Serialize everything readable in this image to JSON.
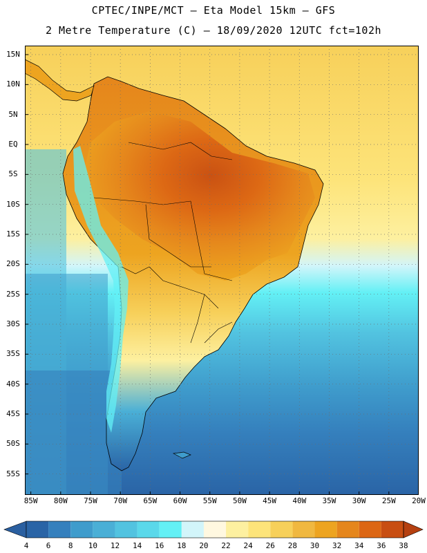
{
  "header": {
    "line1": "CPTEC/INPE/MCT –  Eta Model 15km – GFS",
    "line2": "2 Metre Temperature (C) – 18/09/2020 12UTC fct=102h"
  },
  "map": {
    "lat_labels": [
      "15N",
      "10N",
      "5N",
      "EQ",
      "5S",
      "10S",
      "15S",
      "20S",
      "25S",
      "30S",
      "35S",
      "40S",
      "45S",
      "50S",
      "55S"
    ],
    "lon_labels": [
      "85W",
      "80W",
      "75W",
      "70W",
      "65W",
      "60W",
      "55W",
      "50W",
      "45W",
      "40W",
      "35W",
      "30W",
      "25W",
      "20W"
    ],
    "lat_range": [
      16.5,
      -58.5
    ],
    "lon_range": [
      -86,
      -20
    ],
    "grid": "dotted"
  },
  "colorbar": {
    "labels": [
      "4",
      "6",
      "8",
      "10",
      "12",
      "14",
      "16",
      "18",
      "20",
      "22",
      "24",
      "26",
      "28",
      "30",
      "32",
      "34",
      "36",
      "38"
    ],
    "colors": [
      "#2a64a6",
      "#3580bd",
      "#3f9ccc",
      "#4aafd6",
      "#52c3e0",
      "#5ad8ea",
      "#63f0f5",
      "#d2f5fa",
      "#fff8e0",
      "#fdf0a0",
      "#fde47a",
      "#f7d05a",
      "#f0b840",
      "#eda420",
      "#e5861c",
      "#dc6614",
      "#c84e12"
    ],
    "low_color": "#2a5fa0",
    "high_color": "#b54010"
  }
}
